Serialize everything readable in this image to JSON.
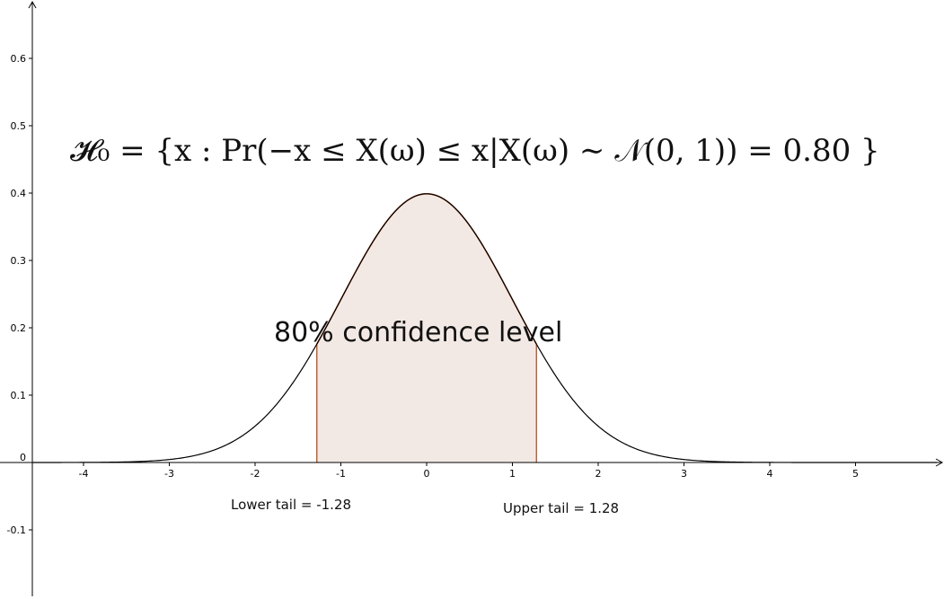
{
  "chart_data": {
    "type": "area",
    "title": "",
    "xlabel": "",
    "ylabel": "",
    "formula": "𝓗₀ = {x : Pr(−x ≤ X(ω) ≤ x|X(ω) ∼ 𝒩(0, 1)) = 0.80 }",
    "curve": "standard normal density N(0,1)",
    "xlim": [
      -4.6,
      6.0
    ],
    "ylim": [
      -0.2,
      0.68
    ],
    "x_ticks": [
      -4,
      -3,
      -2,
      -1,
      0,
      1,
      2,
      3,
      4,
      5
    ],
    "y_ticks": [
      -0.1,
      0,
      0.1,
      0.2,
      0.3,
      0.4,
      0.5,
      0.6
    ],
    "shaded_interval": [
      -1.28,
      1.28
    ],
    "confidence_label": "80%  confidence level",
    "lower_tail_label": "Lower tail = -1.28",
    "upper_tail_label": "Upper tail = 1.28",
    "lower_tail": -1.28,
    "upper_tail": 1.28,
    "grid": false,
    "colors": {
      "curve": "#000000",
      "shade_fill": "#f3e9e4",
      "shade_edge": "#b64d1b",
      "axis": "#000000"
    }
  }
}
